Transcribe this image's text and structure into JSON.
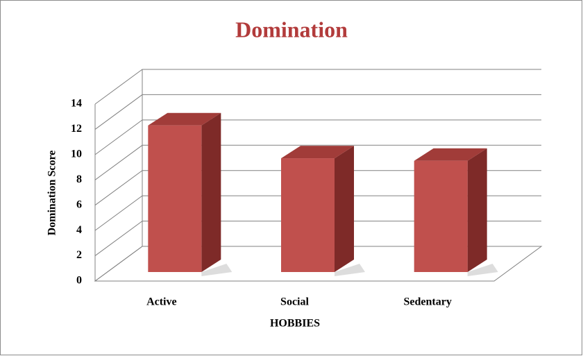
{
  "chart_data": {
    "type": "bar3d",
    "title": "Domination",
    "categories": [
      "Active",
      "Social",
      "Sedentary"
    ],
    "values": [
      11.6,
      9.0,
      8.8
    ],
    "color": "#c0504d",
    "x_label": "HOBBIES",
    "y_label": "Domination Score",
    "ylim": [
      0,
      14
    ],
    "yticks": [
      0,
      2,
      4,
      6,
      8,
      10,
      12,
      14
    ],
    "grid": true
  }
}
